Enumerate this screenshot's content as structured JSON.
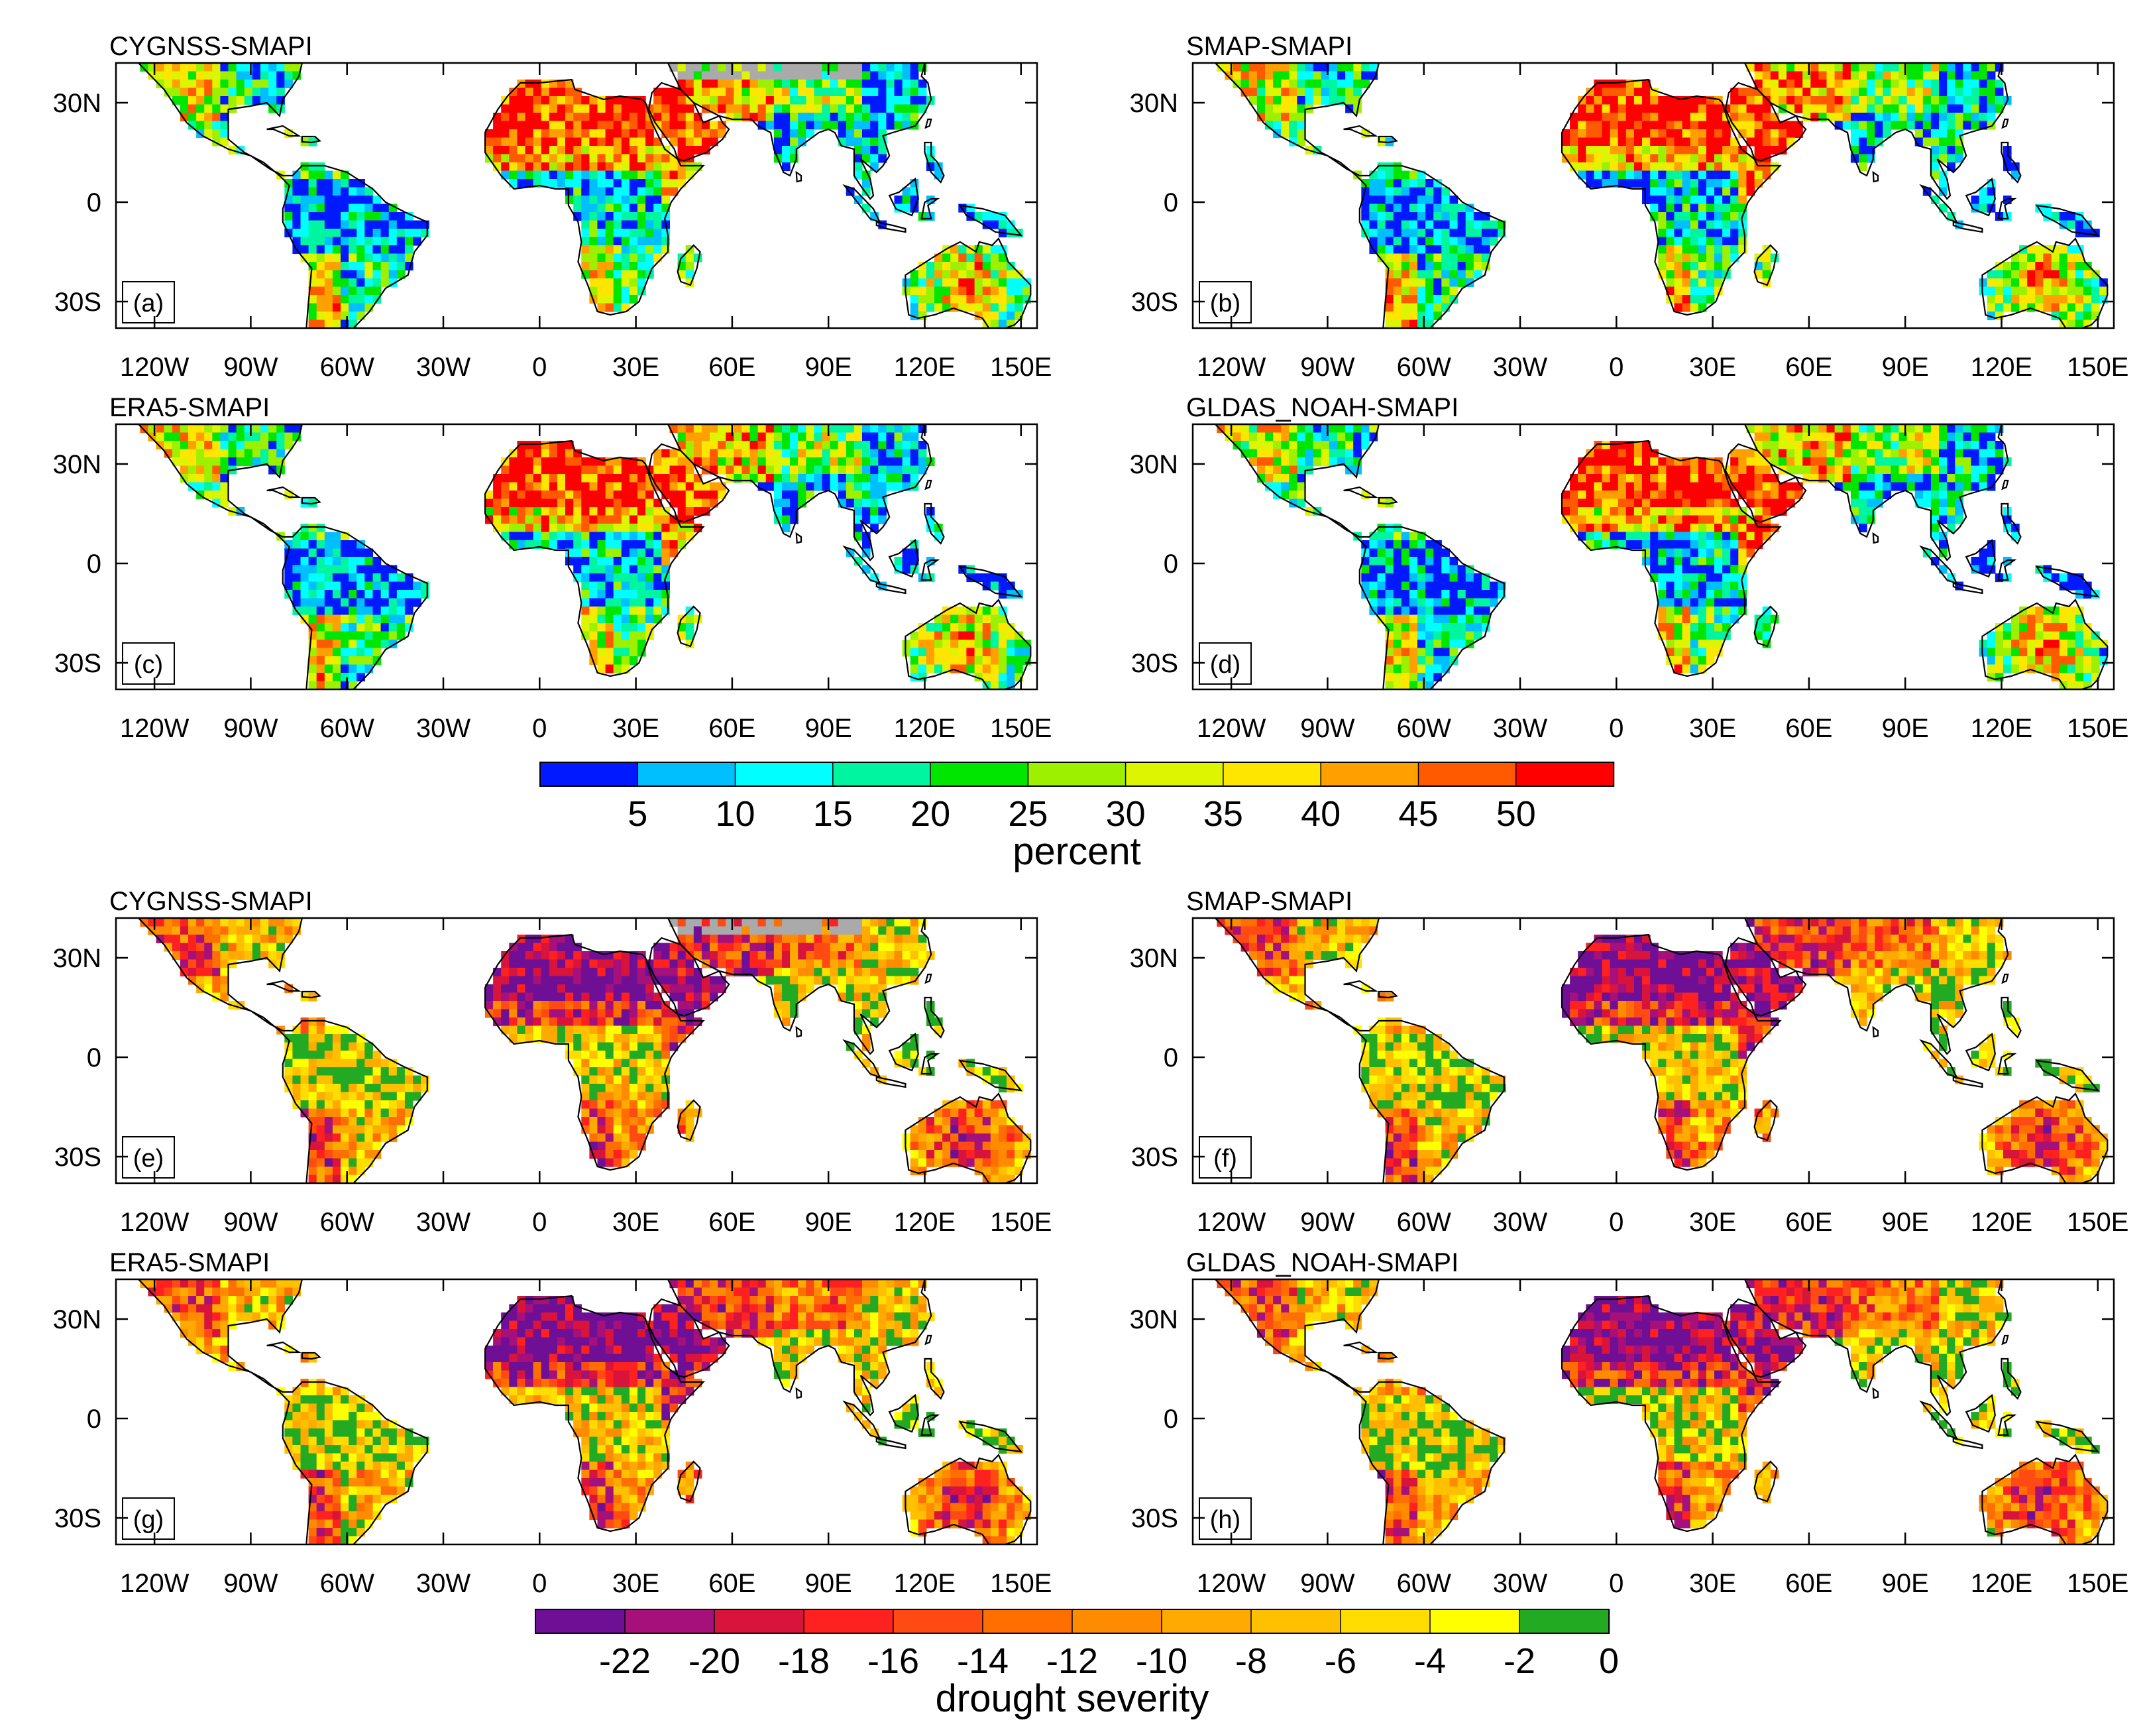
{
  "figure": {
    "lat_ticks": [
      "30N",
      "0",
      "30S"
    ],
    "lon_ticks": [
      "120W",
      "90W",
      "60W",
      "30W",
      "0",
      "30E",
      "60E",
      "90E",
      "120E",
      "150E"
    ],
    "legend_percent": {
      "title": "percent",
      "labels": [
        "5",
        "10",
        "15",
        "20",
        "25",
        "30",
        "35",
        "40",
        "45",
        "50"
      ],
      "colors": [
        "#0019ff",
        "#00bfff",
        "#00ffff",
        "#00f5a0",
        "#00e600",
        "#9cf000",
        "#ddf500",
        "#ffe600",
        "#ffa000",
        "#ff5a00",
        "#ff0000"
      ]
    },
    "legend_severity": {
      "title": "drought severity",
      "labels": [
        "-22",
        "-20",
        "-18",
        "-16",
        "-14",
        "-12",
        "-10",
        "-8",
        "-6",
        "-4",
        "-2",
        "0"
      ],
      "colors": [
        "#6e0f96",
        "#a5107a",
        "#d8143c",
        "#ff2020",
        "#ff4a14",
        "#ff6e00",
        "#ff8c00",
        "#ffaa00",
        "#ffc000",
        "#ffdd00",
        "#ffff00",
        "#22aa22"
      ]
    },
    "panels": [
      {
        "title": "CYGNSS-SMAPI",
        "label": "(a)",
        "variable": "percent"
      },
      {
        "title": "SMAP-SMAPI",
        "label": "(b)",
        "variable": "percent"
      },
      {
        "title": "ERA5-SMAPI",
        "label": "(c)",
        "variable": "percent"
      },
      {
        "title": "GLDAS_NOAH-SMAPI",
        "label": "(d)",
        "variable": "percent"
      },
      {
        "title": "CYGNSS-SMAPI",
        "label": "(e)",
        "variable": "drought severity"
      },
      {
        "title": "SMAP-SMAPI",
        "label": "(f)",
        "variable": "drought severity"
      },
      {
        "title": "ERA5-SMAPI",
        "label": "(g)",
        "variable": "drought severity"
      },
      {
        "title": "GLDAS_NOAH-SMAPI",
        "label": "(h)",
        "variable": "drought severity"
      }
    ]
  }
}
